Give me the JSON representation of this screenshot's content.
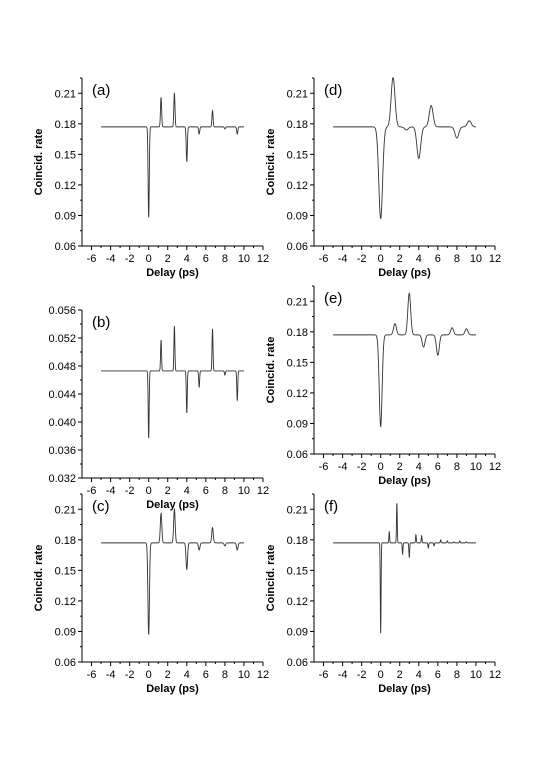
{
  "chart_data": [
    {
      "panel": "(a)",
      "type": "line",
      "xlabel": "Delay (ps)",
      "ylabel": "Coincid. rate",
      "xlim": [
        -7,
        12
      ],
      "xticks": [
        -6,
        -4,
        -2,
        0,
        2,
        4,
        6,
        8,
        10,
        12
      ],
      "ylim": [
        0.06,
        0.225
      ],
      "yticks": [
        0.06,
        0.09,
        0.12,
        0.15,
        0.18,
        0.21
      ],
      "ytick_labels": [
        "0.06",
        "0.09",
        "0.12",
        "0.15",
        "0.18",
        "0.21"
      ],
      "series": [
        {
          "x_range": [
            -5,
            10
          ],
          "baseline": 0.177,
          "features": [
            [
              0.0,
              0.088,
              0.06
            ],
            [
              1.3,
              0.206,
              0.06
            ],
            [
              2.7,
              0.21,
              0.06
            ],
            [
              4.0,
              0.143,
              0.06
            ],
            [
              5.3,
              0.17,
              0.06
            ],
            [
              6.7,
              0.193,
              0.06
            ],
            [
              8.0,
              0.175,
              0.06
            ],
            [
              9.3,
              0.17,
              0.06
            ]
          ]
        }
      ]
    },
    {
      "panel": "(b)",
      "type": "line",
      "xlabel": "Delay (ps)",
      "ylabel": "",
      "xlim": [
        -7,
        12
      ],
      "xticks": [
        -6,
        -4,
        -2,
        0,
        2,
        4,
        6,
        8,
        10,
        12
      ],
      "ylim": [
        0.032,
        0.056
      ],
      "yticks": [
        0.032,
        0.036,
        0.04,
        0.044,
        0.048,
        0.052,
        0.056
      ],
      "ytick_labels": [
        "0.032",
        "0.036",
        "0.040",
        "0.044",
        "0.048",
        "0.052",
        "0.056"
      ],
      "series": [
        {
          "x_range": [
            -5,
            10
          ],
          "baseline": 0.0473,
          "features": [
            [
              0.0,
              0.0377,
              0.05
            ],
            [
              1.3,
              0.0517,
              0.05
            ],
            [
              2.7,
              0.0537,
              0.05
            ],
            [
              4.0,
              0.0413,
              0.05
            ],
            [
              5.3,
              0.045,
              0.05
            ],
            [
              6.7,
              0.0533,
              0.05
            ],
            [
              8.0,
              0.0467,
              0.05
            ],
            [
              9.3,
              0.0431,
              0.05
            ]
          ]
        }
      ]
    },
    {
      "panel": "(c)",
      "type": "line",
      "xlabel": "Delay (ps)",
      "ylabel": "Coincid. rate",
      "xlim": [
        -7,
        12
      ],
      "xticks": [
        -6,
        -4,
        -2,
        0,
        2,
        4,
        6,
        8,
        10,
        12
      ],
      "ylim": [
        0.06,
        0.225
      ],
      "yticks": [
        0.06,
        0.09,
        0.12,
        0.15,
        0.18,
        0.21
      ],
      "ytick_labels": [
        "0.06",
        "0.09",
        "0.12",
        "0.15",
        "0.18",
        "0.21"
      ],
      "series": [
        {
          "x_range": [
            -5,
            10
          ],
          "baseline": 0.177,
          "features": [
            [
              0.0,
              0.087,
              0.08
            ],
            [
              1.3,
              0.206,
              0.08
            ],
            [
              2.7,
              0.21,
              0.08
            ],
            [
              4.0,
              0.151,
              0.08
            ],
            [
              5.3,
              0.17,
              0.08
            ],
            [
              6.7,
              0.192,
              0.08
            ],
            [
              8.0,
              0.174,
              0.08
            ],
            [
              9.3,
              0.17,
              0.08
            ]
          ]
        }
      ]
    },
    {
      "panel": "(d)",
      "type": "line",
      "xlabel": "Delay (ps)",
      "ylabel": "Coincid. rate",
      "xlim": [
        -7,
        12
      ],
      "xticks": [
        -6,
        -4,
        -2,
        0,
        2,
        4,
        6,
        8,
        10,
        12
      ],
      "ylim": [
        0.06,
        0.225
      ],
      "yticks": [
        0.06,
        0.09,
        0.12,
        0.15,
        0.18,
        0.21
      ],
      "ytick_labels": [
        "0.06",
        "0.09",
        "0.12",
        "0.15",
        "0.18",
        "0.21"
      ],
      "series": [
        {
          "x_range": [
            -5,
            10
          ],
          "baseline": 0.177,
          "features": [
            [
              0.0,
              0.087,
              0.2
            ],
            [
              1.3,
              0.226,
              0.2
            ],
            [
              2.7,
              0.174,
              0.2
            ],
            [
              4.0,
              0.146,
              0.2
            ],
            [
              5.3,
              0.198,
              0.2
            ],
            [
              6.7,
              0.177,
              0.2
            ],
            [
              8.0,
              0.166,
              0.2
            ],
            [
              9.3,
              0.183,
              0.2
            ]
          ]
        }
      ]
    },
    {
      "panel": "(e)",
      "type": "line",
      "xlabel": "Delay (ps)",
      "ylabel": "Coincid. rate",
      "xlim": [
        -7,
        12
      ],
      "xticks": [
        -6,
        -4,
        -2,
        0,
        2,
        4,
        6,
        8,
        10,
        12
      ],
      "ylim": [
        0.06,
        0.225
      ],
      "yticks": [
        0.06,
        0.09,
        0.12,
        0.15,
        0.18,
        0.21
      ],
      "ytick_labels": [
        "0.06",
        "0.09",
        "0.12",
        "0.15",
        "0.18",
        "0.21"
      ],
      "series": [
        {
          "x_range": [
            -5,
            10
          ],
          "baseline": 0.177,
          "features": [
            [
              0.0,
              0.087,
              0.15
            ],
            [
              1.5,
              0.188,
              0.15
            ],
            [
              3.0,
              0.218,
              0.15
            ],
            [
              4.5,
              0.165,
              0.15
            ],
            [
              6.0,
              0.157,
              0.15
            ],
            [
              7.5,
              0.184,
              0.15
            ],
            [
              9.0,
              0.183,
              0.15
            ]
          ]
        }
      ]
    },
    {
      "panel": "(f)",
      "type": "line",
      "xlabel": "Delay (ps)",
      "ylabel": "Coincid. rate",
      "xlim": [
        -7,
        12
      ],
      "xticks": [
        -6,
        -4,
        -2,
        0,
        2,
        4,
        6,
        8,
        10,
        12
      ],
      "ylim": [
        0.06,
        0.225
      ],
      "yticks": [
        0.06,
        0.09,
        0.12,
        0.15,
        0.18,
        0.21
      ],
      "ytick_labels": [
        "0.06",
        "0.09",
        "0.12",
        "0.15",
        "0.18",
        "0.21"
      ],
      "series": [
        {
          "x_range": [
            -5,
            10
          ],
          "baseline": 0.177,
          "features": [
            [
              0.0,
              0.088,
              0.04
            ],
            [
              0.9,
              0.188,
              0.04
            ],
            [
              1.7,
              0.216,
              0.04
            ],
            [
              2.3,
              0.166,
              0.04
            ],
            [
              3.0,
              0.163,
              0.04
            ],
            [
              3.7,
              0.185,
              0.04
            ],
            [
              4.3,
              0.184,
              0.04
            ],
            [
              5.0,
              0.172,
              0.04
            ],
            [
              5.6,
              0.174,
              0.04
            ],
            [
              6.3,
              0.18,
              0.04
            ],
            [
              7.0,
              0.179,
              0.04
            ],
            [
              7.7,
              0.178,
              0.04
            ],
            [
              8.3,
              0.179,
              0.04
            ],
            [
              9.0,
              0.178,
              0.04
            ]
          ]
        }
      ]
    }
  ]
}
